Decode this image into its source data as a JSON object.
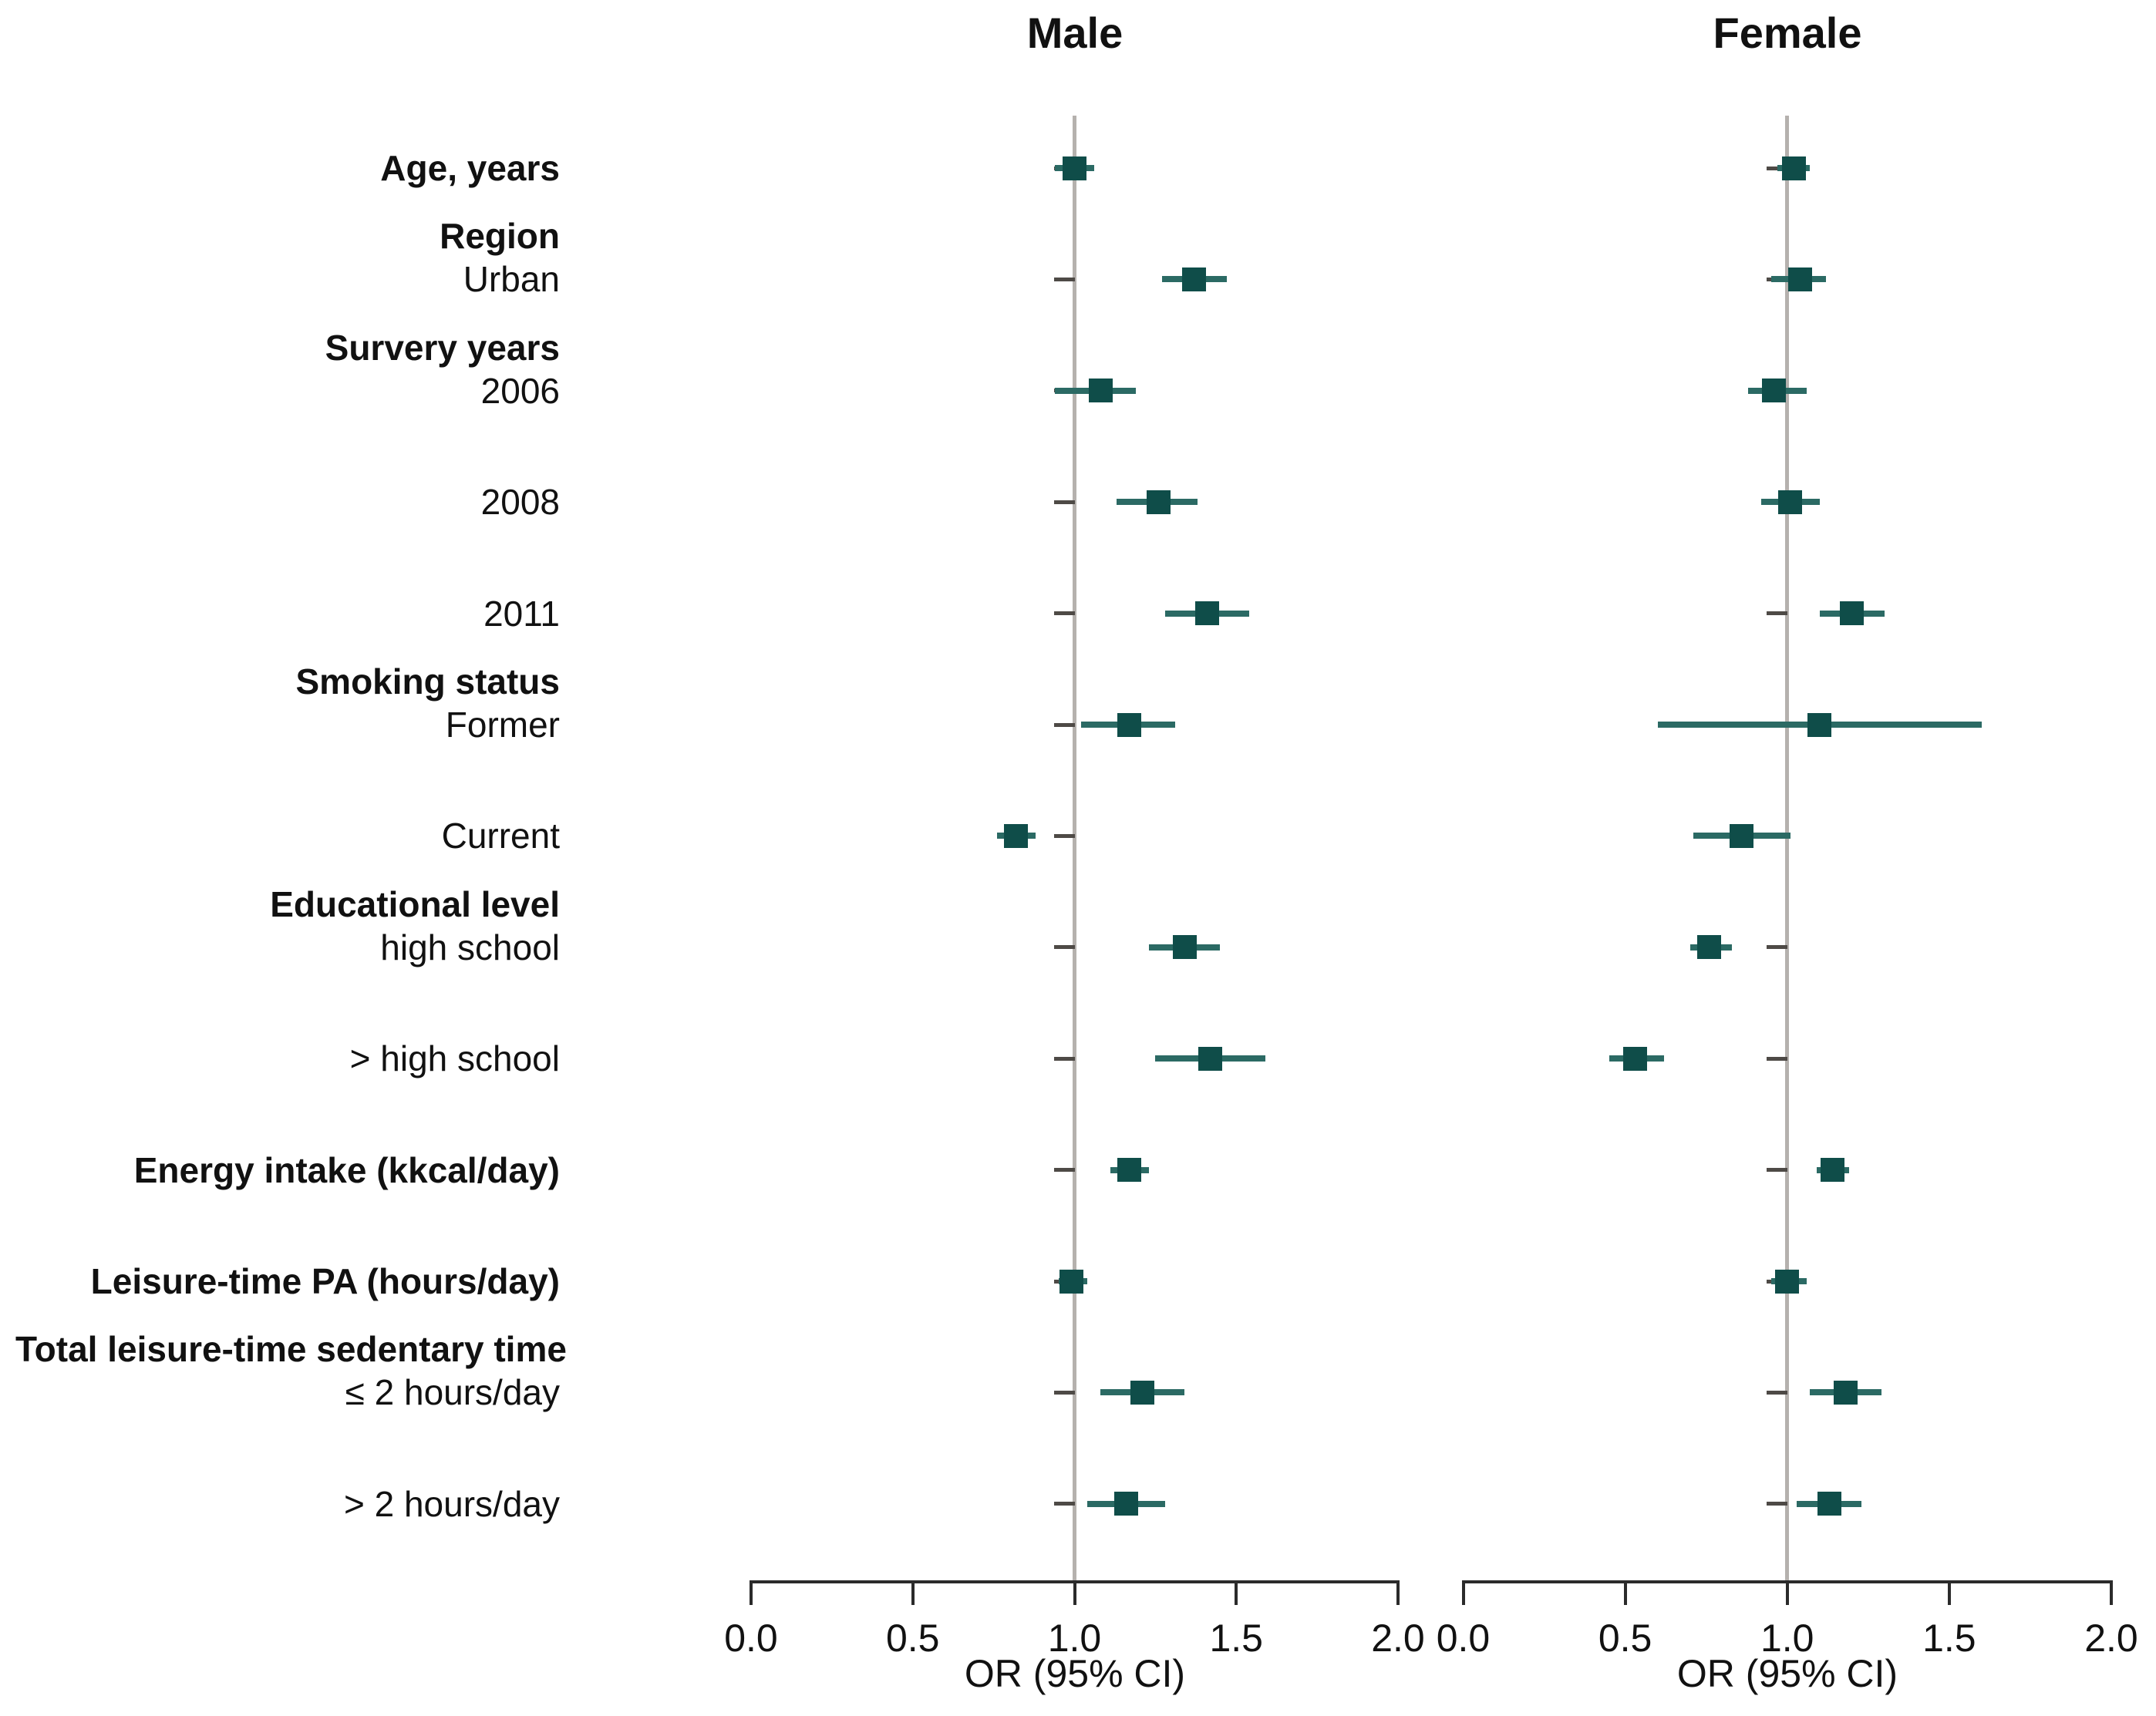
{
  "figure": {
    "kind": "forest-plot",
    "background": "#ffffff"
  },
  "colors": {
    "marker": "#0f4d49",
    "whisker": "#2b6a64",
    "ref_line": "#b5b1ae",
    "row_tick": "#4e4a46",
    "axis": "#2b2b2b",
    "text": "#111111",
    "background": "#ffffff"
  },
  "chart_data": {
    "type": "scatter",
    "subtype": "forest",
    "xlim": [
      0.0,
      2.0
    ],
    "xticks": [
      "0.0",
      "0.5",
      "1.0",
      "1.5",
      "2.0"
    ],
    "refline": 1.0,
    "grid": false,
    "legend": null,
    "rows": [
      {
        "label": "Age, years",
        "bold": true
      },
      {
        "label": "Urban",
        "bold": false,
        "header": "Region"
      },
      {
        "label": "2006",
        "bold": false,
        "header": "Survery years"
      },
      {
        "label": "2008",
        "bold": false
      },
      {
        "label": "2011",
        "bold": false
      },
      {
        "label": "Former",
        "bold": false,
        "header": "Smoking status"
      },
      {
        "label": "Current",
        "bold": false
      },
      {
        "label": "high school",
        "bold": false,
        "header": "Educational level"
      },
      {
        "label": "> high school",
        "bold": false
      },
      {
        "label": "Energy intake (kkcal/day)",
        "bold": true
      },
      {
        "label": "Leisure-time PA (hours/day)",
        "bold": true
      },
      {
        "label": "≤ 2 hours/day",
        "bold": false,
        "header": "Total leisure-time sedentary time"
      },
      {
        "label": "> 2 hours/day",
        "bold": false
      }
    ],
    "panels": [
      {
        "key": "male",
        "title": "Male",
        "xlabel": "OR (95% CI)"
      },
      {
        "key": "female",
        "title": "Female",
        "xlabel": "OR (95% CI)"
      }
    ],
    "estimates": {
      "male": [
        {
          "row": "Age, years",
          "or": 1.0,
          "lo": 0.94,
          "hi": 1.06
        },
        {
          "row": "Urban",
          "or": 1.37,
          "lo": 1.27,
          "hi": 1.47
        },
        {
          "row": "2006",
          "or": 1.08,
          "lo": 0.94,
          "hi": 1.19
        },
        {
          "row": "2008",
          "or": 1.26,
          "lo": 1.13,
          "hi": 1.38
        },
        {
          "row": "2011",
          "or": 1.41,
          "lo": 1.28,
          "hi": 1.54
        },
        {
          "row": "Former",
          "or": 1.17,
          "lo": 1.02,
          "hi": 1.31
        },
        {
          "row": "Current",
          "or": 0.82,
          "lo": 0.76,
          "hi": 0.88
        },
        {
          "row": "high school",
          "or": 1.34,
          "lo": 1.23,
          "hi": 1.45
        },
        {
          "row": "> high school",
          "or": 1.42,
          "lo": 1.25,
          "hi": 1.59
        },
        {
          "row": "Energy intake (kkcal/day)",
          "or": 1.17,
          "lo": 1.11,
          "hi": 1.23
        },
        {
          "row": "Leisure-time PA (hours/day)",
          "or": 0.99,
          "lo": 0.95,
          "hi": 1.04
        },
        {
          "row": "≤ 2 hours/day",
          "or": 1.21,
          "lo": 1.08,
          "hi": 1.34
        },
        {
          "row": "> 2 hours/day",
          "or": 1.16,
          "lo": 1.04,
          "hi": 1.28
        }
      ],
      "female": [
        {
          "row": "Age, years",
          "or": 1.02,
          "lo": 0.97,
          "hi": 1.07
        },
        {
          "row": "Urban",
          "or": 1.04,
          "lo": 0.95,
          "hi": 1.12
        },
        {
          "row": "2006",
          "or": 0.96,
          "lo": 0.88,
          "hi": 1.06
        },
        {
          "row": "2008",
          "or": 1.01,
          "lo": 0.92,
          "hi": 1.1
        },
        {
          "row": "2011",
          "or": 1.2,
          "lo": 1.1,
          "hi": 1.3
        },
        {
          "row": "Former",
          "or": 1.1,
          "lo": 0.6,
          "hi": 1.6
        },
        {
          "row": "Current",
          "or": 0.86,
          "lo": 0.71,
          "hi": 1.01
        },
        {
          "row": "high school",
          "or": 0.76,
          "lo": 0.7,
          "hi": 0.83
        },
        {
          "row": "> high school",
          "or": 0.53,
          "lo": 0.45,
          "hi": 0.62
        },
        {
          "row": "Energy intake (kkcal/day)",
          "or": 1.14,
          "lo": 1.09,
          "hi": 1.19
        },
        {
          "row": "Leisure-time PA (hours/day)",
          "or": 1.0,
          "lo": 0.95,
          "hi": 1.06
        },
        {
          "row": "≤ 2 hours/day",
          "or": 1.18,
          "lo": 1.07,
          "hi": 1.29
        },
        {
          "row": "> 2 hours/day",
          "or": 1.13,
          "lo": 1.03,
          "hi": 1.23
        }
      ]
    }
  }
}
